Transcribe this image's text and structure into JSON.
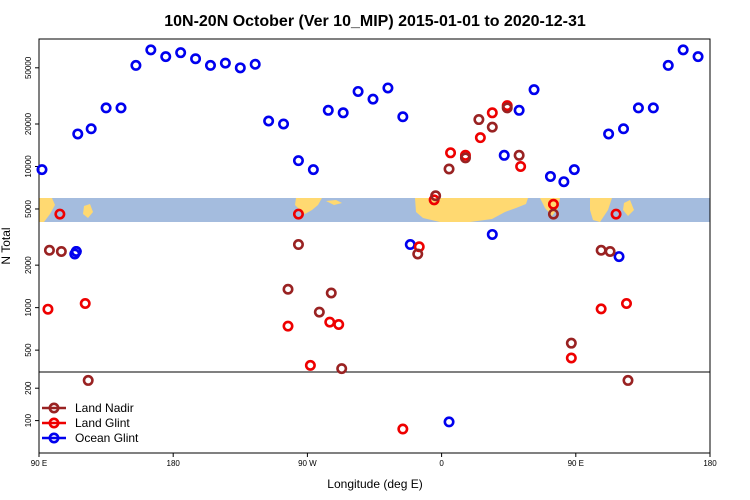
{
  "chart_data": {
    "type": "scatter",
    "title": "10N-20N October (Ver 10_MIP)   2015-01-01 to 2020-12-31",
    "xlabel": "Longitude (deg E)",
    "ylabel": "N Total",
    "xlim": [
      90,
      540
    ],
    "x_ticks": [
      {
        "value": 90,
        "label": "90 E"
      },
      {
        "value": 180,
        "label": "180"
      },
      {
        "value": 270,
        "label": "90 W"
      },
      {
        "value": 360,
        "label": "0"
      },
      {
        "value": 450,
        "label": "90 E"
      },
      {
        "value": 540,
        "label": "180"
      }
    ],
    "y_scale": "log",
    "ylim": [
      350,
      80000
    ],
    "y_ticks": [
      500,
      1000,
      2000,
      5000,
      10000,
      20000,
      50000
    ],
    "lower_ylim": [
      0,
      250
    ],
    "lower_y_ticks": [
      100,
      200
    ],
    "legend": {
      "position": "bottom-left",
      "entries": [
        "Land Nadir",
        "Land Glint",
        "Ocean Glint"
      ]
    },
    "series": [
      {
        "name": "Ocean Glint",
        "color": "#0000ee",
        "points": [
          {
            "x": 92,
            "y": 9500
          },
          {
            "x": 115,
            "y": 2500
          },
          {
            "x": 115,
            "y": 2500
          },
          {
            "x": 114,
            "y": 2400
          },
          {
            "x": 116,
            "y": 17000
          },
          {
            "x": 125,
            "y": 18500
          },
          {
            "x": 135,
            "y": 26000
          },
          {
            "x": 145,
            "y": 26000
          },
          {
            "x": 155,
            "y": 52000
          },
          {
            "x": 165,
            "y": 67000
          },
          {
            "x": 175,
            "y": 60000
          },
          {
            "x": 185,
            "y": 64000
          },
          {
            "x": 195,
            "y": 58000
          },
          {
            "x": 205,
            "y": 52000
          },
          {
            "x": 215,
            "y": 54000
          },
          {
            "x": 225,
            "y": 50000
          },
          {
            "x": 235,
            "y": 53000
          },
          {
            "x": 244,
            "y": 21000
          },
          {
            "x": 254,
            "y": 20000
          },
          {
            "x": 264,
            "y": 11000
          },
          {
            "x": 274,
            "y": 9500
          },
          {
            "x": 284,
            "y": 25000
          },
          {
            "x": 294,
            "y": 24000
          },
          {
            "x": 304,
            "y": 34000
          },
          {
            "x": 314,
            "y": 30000
          },
          {
            "x": 324,
            "y": 36000
          },
          {
            "x": 334,
            "y": 22500
          },
          {
            "x": 339,
            "y": 2800
          },
          {
            "x": 394,
            "y": 3300
          },
          {
            "x": 402,
            "y": 12000
          },
          {
            "x": 412,
            "y": 25000
          },
          {
            "x": 422,
            "y": 35000
          },
          {
            "x": 433,
            "y": 8500
          },
          {
            "x": 442,
            "y": 7800
          },
          {
            "x": 449,
            "y": 9500
          },
          {
            "x": 472,
            "y": 17000
          },
          {
            "x": 479,
            "y": 2300
          },
          {
            "x": 482,
            "y": 18500
          },
          {
            "x": 492,
            "y": 26000
          },
          {
            "x": 502,
            "y": 26000
          },
          {
            "x": 512,
            "y": 52000
          },
          {
            "x": 522,
            "y": 67000
          },
          {
            "x": 532,
            "y": 60000
          }
        ],
        "lower_points": [
          {
            "x": 365,
            "y": 96
          }
        ]
      },
      {
        "name": "Land Glint",
        "color": "#ee0000",
        "points": [
          {
            "x": 96,
            "y": 975
          },
          {
            "x": 104,
            "y": 4600
          },
          {
            "x": 121,
            "y": 1070
          },
          {
            "x": 264,
            "y": 4600
          },
          {
            "x": 257,
            "y": 740
          },
          {
            "x": 272,
            "y": 390
          },
          {
            "x": 285,
            "y": 790
          },
          {
            "x": 291,
            "y": 760
          },
          {
            "x": 345,
            "y": 2700
          },
          {
            "x": 355,
            "y": 5800
          },
          {
            "x": 366,
            "y": 12500
          },
          {
            "x": 376,
            "y": 12000
          },
          {
            "x": 386,
            "y": 16000
          },
          {
            "x": 394,
            "y": 24000
          },
          {
            "x": 404,
            "y": 27000
          },
          {
            "x": 413,
            "y": 10000
          },
          {
            "x": 435,
            "y": 5400
          },
          {
            "x": 447,
            "y": 440
          },
          {
            "x": 467,
            "y": 980
          },
          {
            "x": 477,
            "y": 4600
          },
          {
            "x": 484,
            "y": 1070
          }
        ],
        "lower_points": [
          {
            "x": 334,
            "y": 74
          }
        ]
      },
      {
        "name": "Land Nadir",
        "color": "#992222",
        "points": [
          {
            "x": 97,
            "y": 2550
          },
          {
            "x": 105,
            "y": 2500
          },
          {
            "x": 123,
            "y": 305
          },
          {
            "x": 257,
            "y": 1350
          },
          {
            "x": 264,
            "y": 2800
          },
          {
            "x": 278,
            "y": 930
          },
          {
            "x": 286,
            "y": 1270
          },
          {
            "x": 293,
            "y": 370
          },
          {
            "x": 344,
            "y": 2400
          },
          {
            "x": 356,
            "y": 6200
          },
          {
            "x": 365,
            "y": 9600
          },
          {
            "x": 376,
            "y": 11500
          },
          {
            "x": 385,
            "y": 21500
          },
          {
            "x": 394,
            "y": 19000
          },
          {
            "x": 404,
            "y": 26000
          },
          {
            "x": 412,
            "y": 12000
          },
          {
            "x": 435,
            "y": 4600
          },
          {
            "x": 447,
            "y": 560
          },
          {
            "x": 467,
            "y": 2550
          },
          {
            "x": 473,
            "y": 2500
          },
          {
            "x": 485,
            "y": 305
          }
        ],
        "lower_points": []
      }
    ]
  }
}
